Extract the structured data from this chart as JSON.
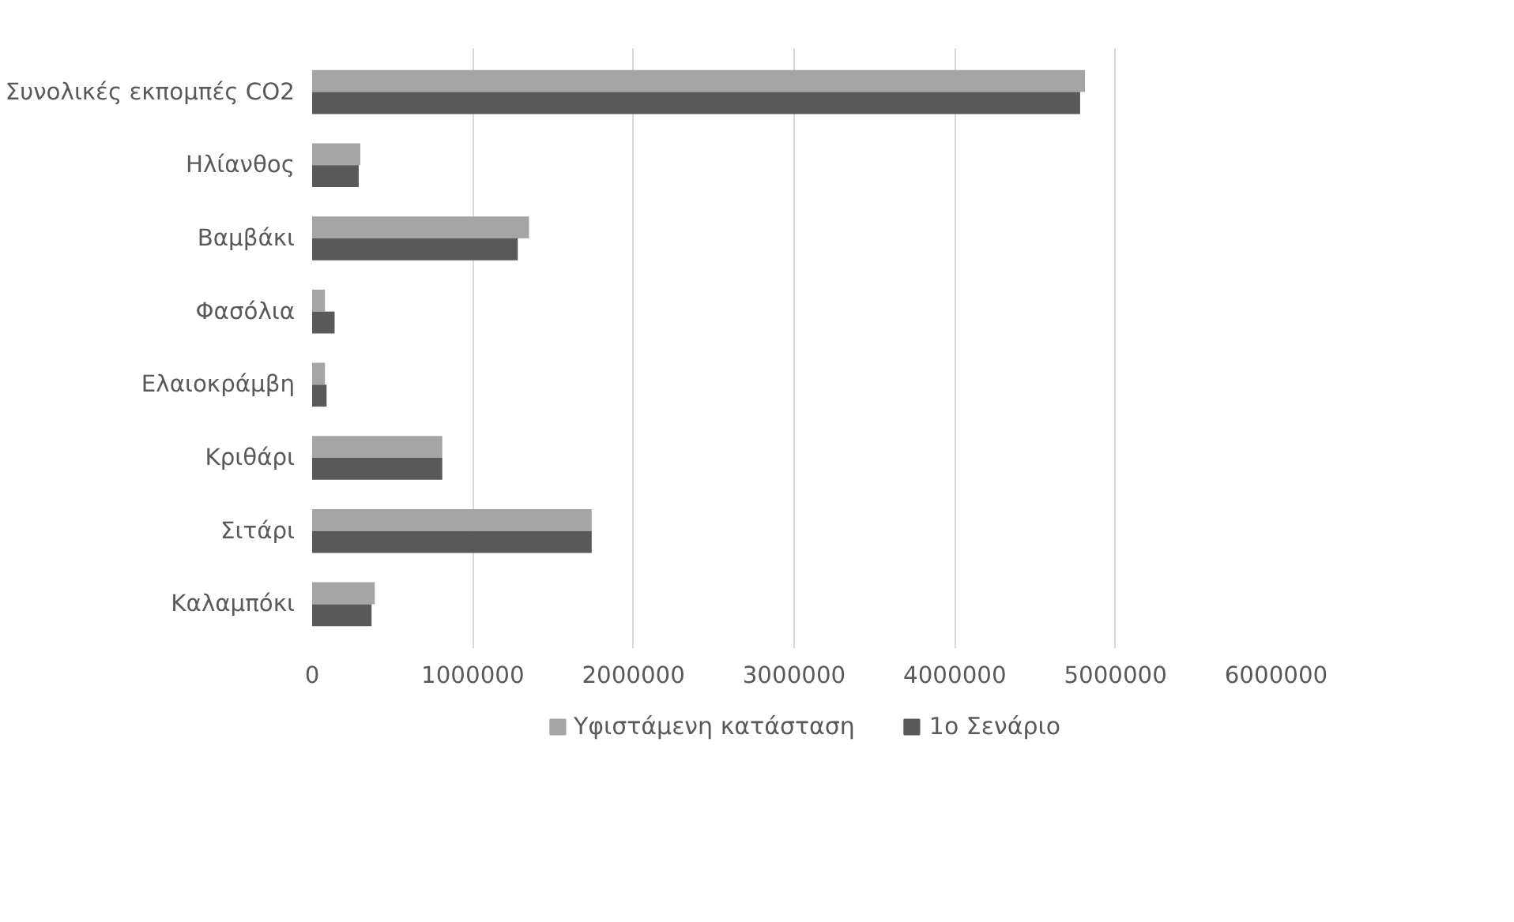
{
  "chart_data": {
    "type": "bar",
    "orientation": "horizontal",
    "categories": [
      "Συνολικές εκπομπές CO2",
      "Ηλίανθος",
      "Βαμβάκι",
      "Φασόλια",
      "Ελαιοκράμβη",
      "Κριθάρι",
      "Σιτάρι",
      "Καλαμπόκι"
    ],
    "series": [
      {
        "name": "Υφιστάμενη κατάσταση",
        "color": "#a5a5a5",
        "values": [
          4810000,
          300000,
          1350000,
          80000,
          80000,
          810000,
          1740000,
          390000
        ]
      },
      {
        "name": "1ο Σενάριο",
        "color": "#595959",
        "values": [
          4780000,
          290000,
          1280000,
          140000,
          90000,
          810000,
          1740000,
          370000
        ]
      }
    ],
    "xlim": [
      0,
      6000000
    ],
    "xticks": [
      0,
      1000000,
      2000000,
      3000000,
      4000000,
      5000000,
      6000000
    ],
    "grid": "x",
    "legend": "bottom"
  }
}
